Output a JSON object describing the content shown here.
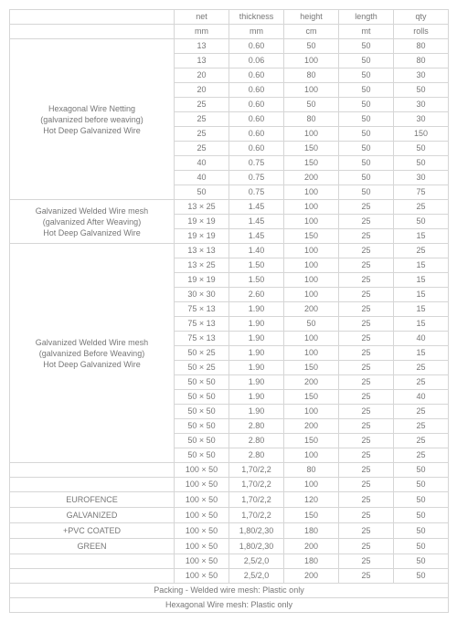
{
  "headers": {
    "row1": [
      "",
      "net",
      "thickness",
      "height",
      "length",
      "qty"
    ],
    "row2": [
      "",
      "mm",
      "mm",
      "cm",
      "mt",
      "rolls"
    ]
  },
  "groups": [
    {
      "label": "Hexagonal Wire Netting<br>(galvanized before weaving)<br>Hot Deep Galvanized Wire",
      "rows": [
        [
          "13",
          "0.60",
          "50",
          "50",
          "80"
        ],
        [
          "13",
          "0.06",
          "100",
          "50",
          "80"
        ],
        [
          "20",
          "0.60",
          "80",
          "50",
          "30"
        ],
        [
          "20",
          "0.60",
          "100",
          "50",
          "50"
        ],
        [
          "25",
          "0.60",
          "50",
          "50",
          "30"
        ],
        [
          "25",
          "0.60",
          "80",
          "50",
          "30"
        ],
        [
          "25",
          "0.60",
          "100",
          "50",
          "150"
        ],
        [
          "25",
          "0.60",
          "150",
          "50",
          "50"
        ],
        [
          "40",
          "0.75",
          "150",
          "50",
          "50"
        ],
        [
          "40",
          "0.75",
          "200",
          "50",
          "30"
        ],
        [
          "50",
          "0.75",
          "100",
          "50",
          "75"
        ]
      ]
    },
    {
      "label": "Galvanized Welded Wire mesh<br>(galvanized After Weaving)<br>Hot Deep Galvanized Wire",
      "rows": [
        [
          "13 × 25",
          "1.45",
          "100",
          "25",
          "25"
        ],
        [
          "19 × 19",
          "1.45",
          "100",
          "25",
          "50"
        ],
        [
          "19 × 19",
          "1.45",
          "150",
          "25",
          "15"
        ]
      ]
    },
    {
      "label": "Galvanized Welded Wire mesh<br>(galvanized Before Weaving)<br>Hot Deep Galvanized Wire",
      "rows": [
        [
          "13 × 13",
          "1.40",
          "100",
          "25",
          "25"
        ],
        [
          "13 × 25",
          "1.50",
          "100",
          "25",
          "15"
        ],
        [
          "19 × 19",
          "1.50",
          "100",
          "25",
          "15"
        ],
        [
          "30 × 30",
          "2.60",
          "100",
          "25",
          "15"
        ],
        [
          "75 × 13",
          "1.90",
          "200",
          "25",
          "15"
        ],
        [
          "75 × 13",
          "1.90",
          "50",
          "25",
          "15"
        ],
        [
          "75 × 13",
          "1.90",
          "100",
          "25",
          "40"
        ],
        [
          "50 × 25",
          "1.90",
          "100",
          "25",
          "15"
        ],
        [
          "50 × 25",
          "1.90",
          "150",
          "25",
          "25"
        ],
        [
          "50 × 50",
          "1.90",
          "200",
          "25",
          "25"
        ],
        [
          "50 × 50",
          "1.90",
          "150",
          "25",
          "40"
        ],
        [
          "50 × 50",
          "1.90",
          "100",
          "25",
          "25"
        ],
        [
          "50 × 50",
          "2.80",
          "200",
          "25",
          "25"
        ],
        [
          "50 × 50",
          "2.80",
          "150",
          "25",
          "25"
        ],
        [
          "50 × 50",
          "2.80",
          "100",
          "25",
          "25"
        ]
      ]
    },
    {
      "label": "",
      "rows": [
        [
          "100 × 50",
          "1,70/2,2",
          "80",
          "25",
          "50"
        ]
      ]
    },
    {
      "label": "",
      "rows": [
        [
          "100 × 50",
          "1,70/2,2",
          "100",
          "25",
          "50"
        ]
      ]
    },
    {
      "label": "EUROFENCE",
      "rows": [
        [
          "100 × 50",
          "1,70/2,2",
          "120",
          "25",
          "50"
        ]
      ]
    },
    {
      "label": "GALVANIZED",
      "rows": [
        [
          "100 × 50",
          "1,70/2,2",
          "150",
          "25",
          "50"
        ]
      ]
    },
    {
      "label": "+PVC COATED",
      "rows": [
        [
          "100 × 50",
          "1,80/2,30",
          "180",
          "25",
          "50"
        ]
      ]
    },
    {
      "label": "GREEN",
      "rows": [
        [
          "100 × 50",
          "1,80/2,30",
          "200",
          "25",
          "50"
        ]
      ]
    },
    {
      "label": "",
      "rows": [
        [
          "100 × 50",
          "2,5/2,0",
          "180",
          "25",
          "50"
        ]
      ]
    },
    {
      "label": "",
      "rows": [
        [
          "100 × 50",
          "2,5/2,0",
          "200",
          "25",
          "50"
        ]
      ]
    }
  ],
  "footers": [
    "Packing - Welded wire mesh: Plastic only",
    "Hexagonal Wire mesh: Plastic only"
  ]
}
